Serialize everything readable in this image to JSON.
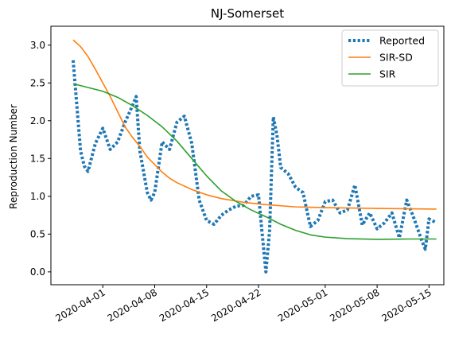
{
  "chart_data": {
    "type": "line",
    "title": "NJ-Somerset",
    "xlabel": "",
    "ylabel": "Reproduction Number",
    "ylim": [
      -0.17,
      3.25
    ],
    "xlim": [
      "2020-03-25",
      "2020-05-17"
    ],
    "grid": false,
    "legend_position": "top-right",
    "x_ticks": [
      "2020-04-01",
      "2020-04-08",
      "2020-04-15",
      "2020-04-22",
      "2020-05-01",
      "2020-05-08",
      "2020-05-15"
    ],
    "y_ticks": [
      "0.0",
      "0.5",
      "1.0",
      "1.5",
      "2.0",
      "2.5",
      "3.0"
    ],
    "series": [
      {
        "name": "Reported",
        "style": "dotted",
        "color": "#1f77b4",
        "points": [
          [
            "2020-03-28",
            2.8
          ],
          [
            "2020-03-28T12:00",
            2.2
          ],
          [
            "2020-03-29",
            1.6
          ],
          [
            "2020-03-29T12:00",
            1.4
          ],
          [
            "2020-03-30",
            1.33
          ],
          [
            "2020-03-31",
            1.7
          ],
          [
            "2020-04-01",
            1.9
          ],
          [
            "2020-04-02",
            1.62
          ],
          [
            "2020-04-03",
            1.72
          ],
          [
            "2020-04-04",
            1.98
          ],
          [
            "2020-04-05",
            2.2
          ],
          [
            "2020-04-05T12:00",
            2.32
          ],
          [
            "2020-04-06",
            1.6
          ],
          [
            "2020-04-07",
            1.05
          ],
          [
            "2020-04-07T12:00",
            0.95
          ],
          [
            "2020-04-08",
            1.05
          ],
          [
            "2020-04-09",
            1.72
          ],
          [
            "2020-04-10",
            1.62
          ],
          [
            "2020-04-11",
            1.98
          ],
          [
            "2020-04-12",
            2.06
          ],
          [
            "2020-04-13",
            1.7
          ],
          [
            "2020-04-14",
            0.95
          ],
          [
            "2020-04-15",
            0.68
          ],
          [
            "2020-04-16",
            0.63
          ],
          [
            "2020-04-17",
            0.75
          ],
          [
            "2020-04-18",
            0.82
          ],
          [
            "2020-04-19",
            0.87
          ],
          [
            "2020-04-20",
            0.88
          ],
          [
            "2020-04-21",
            1.0
          ],
          [
            "2020-04-22",
            1.02
          ],
          [
            "2020-04-22T12:00",
            0.5
          ],
          [
            "2020-04-23",
            0.0
          ],
          [
            "2020-04-23T12:00",
            0.55
          ],
          [
            "2020-04-24",
            2.05
          ],
          [
            "2020-04-24T12:00",
            1.8
          ],
          [
            "2020-04-25",
            1.38
          ],
          [
            "2020-04-26",
            1.3
          ],
          [
            "2020-04-27",
            1.12
          ],
          [
            "2020-04-28",
            1.05
          ],
          [
            "2020-04-29",
            0.6
          ],
          [
            "2020-04-30",
            0.68
          ],
          [
            "2020-05-01",
            0.93
          ],
          [
            "2020-05-02",
            0.95
          ],
          [
            "2020-05-03",
            0.78
          ],
          [
            "2020-05-04",
            0.82
          ],
          [
            "2020-05-05",
            1.15
          ],
          [
            "2020-05-06",
            0.62
          ],
          [
            "2020-05-07",
            0.78
          ],
          [
            "2020-05-08",
            0.57
          ],
          [
            "2020-05-09",
            0.65
          ],
          [
            "2020-05-10",
            0.78
          ],
          [
            "2020-05-11",
            0.45
          ],
          [
            "2020-05-12",
            0.95
          ],
          [
            "2020-05-13",
            0.7
          ],
          [
            "2020-05-14",
            0.42
          ],
          [
            "2020-05-14T12:00",
            0.3
          ],
          [
            "2020-05-15",
            0.7
          ],
          [
            "2020-05-16",
            0.65
          ]
        ]
      },
      {
        "name": "SIR-SD",
        "style": "solid",
        "color": "#ff7f0e",
        "points": [
          [
            "2020-03-28",
            3.07
          ],
          [
            "2020-03-29",
            2.98
          ],
          [
            "2020-03-30",
            2.85
          ],
          [
            "2020-03-31",
            2.68
          ],
          [
            "2020-04-01",
            2.5
          ],
          [
            "2020-04-02",
            2.32
          ],
          [
            "2020-04-03",
            2.12
          ],
          [
            "2020-04-04",
            1.92
          ],
          [
            "2020-04-05",
            1.78
          ],
          [
            "2020-04-06",
            1.66
          ],
          [
            "2020-04-07",
            1.52
          ],
          [
            "2020-04-08",
            1.42
          ],
          [
            "2020-04-09",
            1.32
          ],
          [
            "2020-04-10",
            1.24
          ],
          [
            "2020-04-11",
            1.18
          ],
          [
            "2020-04-13",
            1.09
          ],
          [
            "2020-04-15",
            1.02
          ],
          [
            "2020-04-17",
            0.97
          ],
          [
            "2020-04-20",
            0.92
          ],
          [
            "2020-04-23",
            0.89
          ],
          [
            "2020-04-27",
            0.86
          ],
          [
            "2020-05-01",
            0.85
          ],
          [
            "2020-05-08",
            0.84
          ],
          [
            "2020-05-16",
            0.83
          ]
        ]
      },
      {
        "name": "SIR",
        "style": "solid",
        "color": "#2ca02c",
        "points": [
          [
            "2020-03-28",
            2.49
          ],
          [
            "2020-03-30",
            2.44
          ],
          [
            "2020-04-01",
            2.39
          ],
          [
            "2020-04-03",
            2.31
          ],
          [
            "2020-04-05",
            2.2
          ],
          [
            "2020-04-07",
            2.07
          ],
          [
            "2020-04-09",
            1.92
          ],
          [
            "2020-04-11",
            1.73
          ],
          [
            "2020-04-13",
            1.5
          ],
          [
            "2020-04-15",
            1.27
          ],
          [
            "2020-04-17",
            1.07
          ],
          [
            "2020-04-19",
            0.93
          ],
          [
            "2020-04-21",
            0.82
          ],
          [
            "2020-04-23",
            0.73
          ],
          [
            "2020-04-25",
            0.63
          ],
          [
            "2020-04-27",
            0.55
          ],
          [
            "2020-04-29",
            0.49
          ],
          [
            "2020-05-01",
            0.46
          ],
          [
            "2020-05-04",
            0.44
          ],
          [
            "2020-05-08",
            0.43
          ],
          [
            "2020-05-12",
            0.435
          ],
          [
            "2020-05-16",
            0.435
          ]
        ]
      }
    ]
  }
}
